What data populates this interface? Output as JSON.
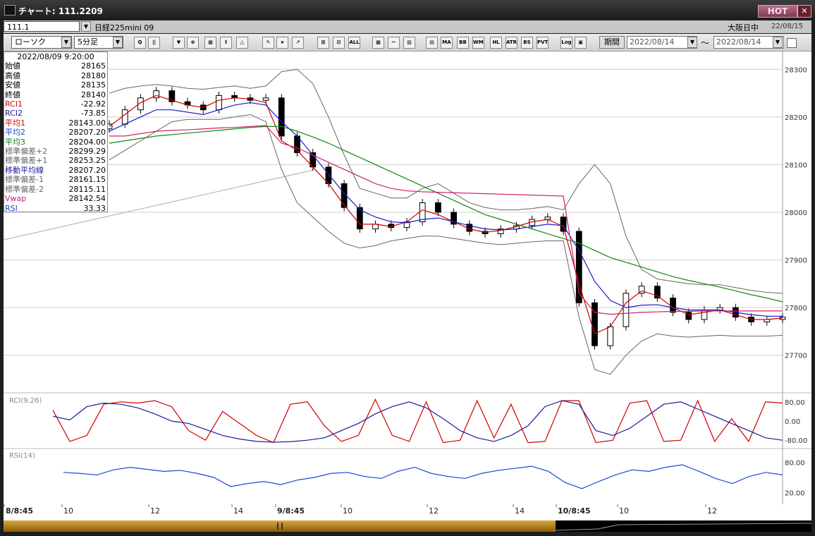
{
  "window": {
    "title": "チャート: 111.2209",
    "hot_label": "HOT",
    "close_label": "✕"
  },
  "symbol_bar": {
    "code": "111.1",
    "name": "日経225mini 09",
    "market": "大阪日中",
    "date": "22/08/15"
  },
  "toolbar": {
    "chart_type": "ローソク",
    "interval": "5分足",
    "buttons": [
      {
        "id": "zoom",
        "label": "Q"
      },
      {
        "id": "columns",
        "label": "||"
      },
      {
        "id": "marker",
        "label": "▼"
      },
      {
        "id": "mark2",
        "label": "⊕"
      },
      {
        "id": "bars",
        "label": "▦"
      },
      {
        "id": "arrows",
        "label": "↕"
      },
      {
        "id": "warn",
        "label": "△"
      },
      {
        "id": "pen",
        "label": "✎"
      },
      {
        "id": "cursor",
        "label": "➤"
      },
      {
        "id": "arrow",
        "label": "↗"
      },
      {
        "id": "cand1",
        "label": "⊞"
      },
      {
        "id": "cand2",
        "label": "⊟"
      },
      {
        "id": "all",
        "label": "ALL"
      },
      {
        "id": "grid",
        "label": "▩"
      },
      {
        "id": "tool",
        "label": "✂"
      },
      {
        "id": "palette",
        "label": "▨"
      },
      {
        "id": "fn",
        "label": "▤"
      },
      {
        "id": "ma",
        "label": "MA"
      },
      {
        "id": "bb",
        "label": "BB"
      },
      {
        "id": "wma",
        "label": "WMA"
      },
      {
        "id": "hl",
        "label": "HL"
      },
      {
        "id": "atr",
        "label": "ATR"
      },
      {
        "id": "bs",
        "label": "BS"
      },
      {
        "id": "pvt",
        "label": "PVT"
      },
      {
        "id": "log",
        "label": "Log"
      },
      {
        "id": "print",
        "label": "▣"
      }
    ],
    "period_label": "期間",
    "date_from": "2022/08/14",
    "date_to": "2022/08/14",
    "tilde": "〜"
  },
  "info_panel": {
    "datetime": "2022/08/09 9:20:00",
    "rows": [
      {
        "label": "始値",
        "value": "28165",
        "color": "#000000"
      },
      {
        "label": "高値",
        "value": "28180",
        "color": "#000000"
      },
      {
        "label": "安値",
        "value": "28135",
        "color": "#000000"
      },
      {
        "label": "終値",
        "value": "28140",
        "color": "#000000"
      },
      {
        "label": "RCI1",
        "value": "-22.92",
        "color": "#d00000"
      },
      {
        "label": "RCI2",
        "value": "-73.85",
        "color": "#1a1aa0"
      },
      {
        "label": "平均1",
        "value": "28143.00",
        "color": "#d00000"
      },
      {
        "label": "平均2",
        "value": "28207.20",
        "color": "#1a4ad0"
      },
      {
        "label": "平均3",
        "value": "28204.00",
        "color": "#108010"
      },
      {
        "label": "標準偏差+2",
        "value": "28299.29",
        "color": "#666666"
      },
      {
        "label": "標準偏差+1",
        "value": "28253.25",
        "color": "#666666"
      },
      {
        "label": "移動平均線",
        "value": "28207.20",
        "color": "#1a1aa0"
      },
      {
        "label": "標準偏差-1",
        "value": "28161.15",
        "color": "#666666"
      },
      {
        "label": "標準偏差-2",
        "value": "28115.11",
        "color": "#666666"
      },
      {
        "label": "Vwap",
        "value": "28142.54",
        "color": "#c0208a"
      },
      {
        "label": "RSI",
        "value": "33.33",
        "color": "#1a4ad0"
      }
    ]
  },
  "chart_data": [
    {
      "type": "candlestick",
      "title": "",
      "y_ticks": [
        27700,
        27800,
        27900,
        28000,
        28100,
        28200,
        28300
      ],
      "ylim": [
        27630,
        28330
      ],
      "sessions": [
        "8/8:45",
        "9/8:45",
        "10/8:45"
      ],
      "x_tick_labels": [
        "8/8:45",
        "10",
        "12",
        "14",
        "9/8:45",
        "10",
        "12",
        "14",
        "10/8:45",
        "10",
        "12"
      ],
      "series": [
        {
          "name": "終値",
          "values": [
            28185,
            28215,
            28240,
            28255,
            28232,
            28225,
            28215,
            28245,
            28240,
            28235,
            28240,
            28160,
            28125,
            28095,
            28060,
            28010,
            27965,
            27975,
            27968,
            27980,
            28020,
            28000,
            27975,
            27960,
            27955,
            27965,
            27972,
            27985,
            27990,
            27960,
            27810,
            27720,
            27760,
            27830,
            27845,
            27820,
            27790,
            27775,
            27795,
            27800,
            27780,
            27770,
            27775,
            27780
          ]
        },
        {
          "name": "平均1",
          "values": [
            28180,
            28205,
            28230,
            28245,
            28235,
            28225,
            28220,
            28235,
            28240,
            28238,
            28230,
            28150,
            28130,
            28095,
            28060,
            28015,
            27975,
            27975,
            27970,
            27980,
            28005,
            27995,
            27980,
            27965,
            27958,
            27962,
            27970,
            27980,
            27985,
            27970,
            27850,
            27745,
            27760,
            27810,
            27835,
            27825,
            27800,
            27785,
            27790,
            27795,
            27785,
            27775,
            27775,
            27778
          ]
        },
        {
          "name": "平均2",
          "values": [
            28170,
            28185,
            28200,
            28215,
            28215,
            28210,
            28205,
            28215,
            28225,
            28230,
            28225,
            28190,
            28160,
            28120,
            28080,
            28040,
            28005,
            27990,
            27980,
            27978,
            27985,
            27988,
            27980,
            27972,
            27965,
            27963,
            27965,
            27970,
            27975,
            27972,
            27920,
            27855,
            27815,
            27800,
            27805,
            27806,
            27800,
            27795,
            27795,
            27795,
            27790,
            27785,
            27782,
            27782
          ]
        },
        {
          "name": "平均3",
          "values": [
            28145,
            28150,
            28155,
            28160,
            28163,
            28166,
            28169,
            28172,
            28175,
            28178,
            28180,
            28180,
            28170,
            28158,
            28145,
            28130,
            28115,
            28100,
            28085,
            28070,
            28055,
            28040,
            28025,
            28010,
            27995,
            27985,
            27975,
            27965,
            27955,
            27945,
            27935,
            27920,
            27905,
            27895,
            27885,
            27875,
            27865,
            27857,
            27850,
            27843,
            27835,
            27827,
            27820,
            27812
          ]
        },
        {
          "name": "Vwap",
          "values": [
            28160,
            28160,
            28165,
            28170,
            28172,
            28173,
            28175,
            28177,
            28178,
            28180,
            28182,
            28145,
            28135,
            28120,
            28105,
            28090,
            28075,
            28060,
            28050,
            28045,
            28043,
            28042,
            28041,
            28040,
            28039,
            28038,
            28037,
            28036,
            28035,
            28034,
            27830,
            27790,
            27786,
            27788,
            27790,
            27791,
            27792,
            27792,
            27793,
            27793,
            27793,
            27793,
            27793,
            27793
          ]
        },
        {
          "name": "標準偏差+2",
          "values": [
            28250,
            28260,
            28265,
            28268,
            28265,
            28260,
            28258,
            28262,
            28265,
            28260,
            28265,
            28295,
            28300,
            28270,
            28200,
            28120,
            28050,
            28040,
            28030,
            28030,
            28050,
            28060,
            28040,
            28020,
            28010,
            28005,
            28005,
            28008,
            28012,
            28005,
            28060,
            28100,
            28060,
            27950,
            27880,
            27860,
            27855,
            27850,
            27848,
            27848,
            27842,
            27836,
            27832,
            27830
          ]
        },
        {
          "name": "標準偏差-2",
          "values": [
            28110,
            28130,
            28150,
            28170,
            28190,
            28195,
            28195,
            28195,
            28200,
            28205,
            28190,
            28090,
            28020,
            27990,
            27960,
            27935,
            27925,
            27930,
            27940,
            27945,
            27950,
            27950,
            27945,
            27940,
            27935,
            27932,
            27935,
            27938,
            27940,
            27940,
            27780,
            27670,
            27660,
            27700,
            27730,
            27745,
            27740,
            27738,
            27740,
            27742,
            27740,
            27740,
            27740,
            27742
          ]
        }
      ]
    },
    {
      "type": "line",
      "title": "RCI(9,26)",
      "y_ticks": [
        "80.00",
        "0.00",
        "-80.00"
      ],
      "series": [
        {
          "name": "RCI1",
          "values": [
            45,
            -85,
            -60,
            70,
            80,
            75,
            85,
            60,
            -40,
            -80,
            40,
            -10,
            -60,
            -90,
            70,
            80,
            -20,
            -85,
            -60,
            90,
            -60,
            -85,
            80,
            -90,
            -80,
            85,
            -70,
            70,
            -90,
            -85,
            85,
            85,
            -90,
            -80,
            75,
            85,
            -85,
            -80,
            85,
            -85,
            10,
            -85,
            80,
            75
          ]
        },
        {
          "name": "RCI2",
          "values": [
            20,
            5,
            60,
            75,
            70,
            55,
            30,
            0,
            -10,
            -35,
            -60,
            -75,
            -85,
            -88,
            -86,
            -80,
            -70,
            -40,
            -10,
            30,
            60,
            80,
            55,
            10,
            -40,
            -70,
            -85,
            -60,
            -20,
            60,
            85,
            70,
            -40,
            -60,
            -30,
            20,
            70,
            80,
            50,
            20,
            -10,
            -40,
            -70,
            -80
          ]
        }
      ]
    },
    {
      "type": "line",
      "title": "RSI(14)",
      "y_ticks": [
        "80.00",
        "20.00"
      ],
      "series": [
        {
          "name": "RSI",
          "values": [
            60,
            58,
            55,
            65,
            70,
            66,
            62,
            64,
            58,
            50,
            32,
            38,
            42,
            36,
            45,
            50,
            58,
            60,
            52,
            48,
            62,
            70,
            58,
            52,
            48,
            58,
            64,
            68,
            72,
            62,
            40,
            28,
            42,
            55,
            65,
            62,
            70,
            75,
            62,
            48,
            38,
            52,
            60,
            55
          ]
        }
      ]
    }
  ],
  "price_axis": [
    "28300",
    "28200",
    "28100",
    "28000",
    "27900",
    "27800",
    "27700"
  ],
  "rci_axis": [
    "80.00",
    "0.00",
    "-80.00"
  ],
  "rsi_axis": [
    "80.00",
    "20.00"
  ],
  "rci_title": "RCI(9,26)",
  "rsi_title": "RSI(14)",
  "x_axis": [
    "8/8:45",
    "10",
    "12",
    "14",
    "9/8:45",
    "10",
    "12",
    "14",
    "10/8:45",
    "10",
    "12"
  ],
  "colors": {
    "rci1": "#d00000",
    "rci2": "#1a1aa0",
    "ma1": "#d00000",
    "ma2": "#1a1acc",
    "ma3": "#118811",
    "vwap": "#d0206a",
    "band": "#666666",
    "rsi": "#1a4ad0",
    "bear": "#000000",
    "bull": "#ffffff"
  }
}
